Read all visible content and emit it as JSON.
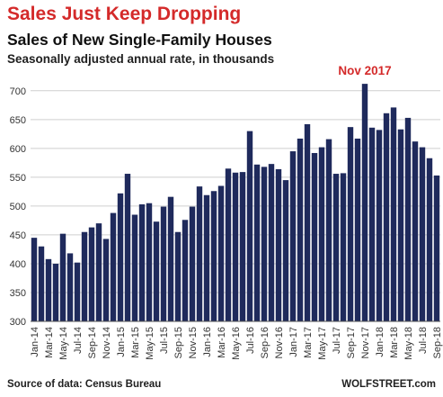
{
  "header": {
    "headline": "Sales Just Keep Dropping",
    "title": "Sales of New Single-Family Houses",
    "subtitle": "Seasonally adjusted annual rate, in thousands"
  },
  "footer": {
    "source": "Source of data: Census Bureau",
    "brand": "WOLFSTREET.com"
  },
  "colors": {
    "bar": "#1f2a5c",
    "headline": "#d42a2a",
    "annotation": "#d42a2a",
    "grid": "#cfcfcf"
  },
  "chart_data": {
    "type": "bar",
    "title": "Sales of New Single-Family Houses",
    "subtitle": "Seasonally adjusted annual rate, in thousands",
    "xlabel": "",
    "ylabel": "",
    "ylim": [
      300,
      720
    ],
    "yticks": [
      300,
      350,
      400,
      450,
      500,
      550,
      600,
      650,
      700
    ],
    "grid": true,
    "categories": [
      "Jan-14",
      "Feb-14",
      "Mar-14",
      "Apr-14",
      "May-14",
      "Jun-14",
      "Jul-14",
      "Aug-14",
      "Sep-14",
      "Oct-14",
      "Nov-14",
      "Dec-14",
      "Jan-15",
      "Feb-15",
      "Mar-15",
      "Apr-15",
      "May-15",
      "Jun-15",
      "Jul-15",
      "Aug-15",
      "Sep-15",
      "Oct-15",
      "Nov-15",
      "Dec-15",
      "Jan-16",
      "Feb-16",
      "Mar-16",
      "Apr-16",
      "May-16",
      "Jun-16",
      "Jul-16",
      "Aug-16",
      "Sep-16",
      "Oct-16",
      "Nov-16",
      "Dec-16",
      "Jan-17",
      "Feb-17",
      "Mar-17",
      "Apr-17",
      "May-17",
      "Jun-17",
      "Jul-17",
      "Aug-17",
      "Sep-17",
      "Oct-17",
      "Nov-17",
      "Dec-17",
      "Jan-18",
      "Feb-18",
      "Mar-18",
      "Apr-18",
      "May-18",
      "Jun-18",
      "Jul-18",
      "Aug-18",
      "Sep-18"
    ],
    "values": [
      445,
      430,
      408,
      400,
      452,
      418,
      402,
      455,
      463,
      470,
      443,
      488,
      522,
      556,
      485,
      503,
      505,
      473,
      499,
      516,
      455,
      476,
      499,
      534,
      519,
      526,
      535,
      565,
      558,
      559,
      630,
      572,
      568,
      573,
      564,
      545,
      595,
      617,
      642,
      592,
      602,
      616,
      556,
      557,
      637,
      617,
      712,
      636,
      632,
      661,
      671,
      633,
      653,
      612,
      602,
      583,
      553
    ],
    "xtick_labels": [
      "Jan-14",
      "Mar-14",
      "May-14",
      "Jul-14",
      "Sep-14",
      "Nov-14",
      "Jan-15",
      "Mar-15",
      "May-15",
      "Jul-15",
      "Sep-15",
      "Nov-15",
      "Jan-16",
      "Mar-16",
      "May-16",
      "Jul-16",
      "Sep-16",
      "Nov-16",
      "Jan-17",
      "Mar-17",
      "May-17",
      "Jul-17",
      "Sep-17",
      "Nov-17",
      "Jan-18",
      "Mar-18",
      "May-18",
      "Jul-18",
      "Sep-18"
    ],
    "annotations": [
      {
        "text": "Nov 2017",
        "category": "Nov-17",
        "value": 712
      }
    ]
  }
}
